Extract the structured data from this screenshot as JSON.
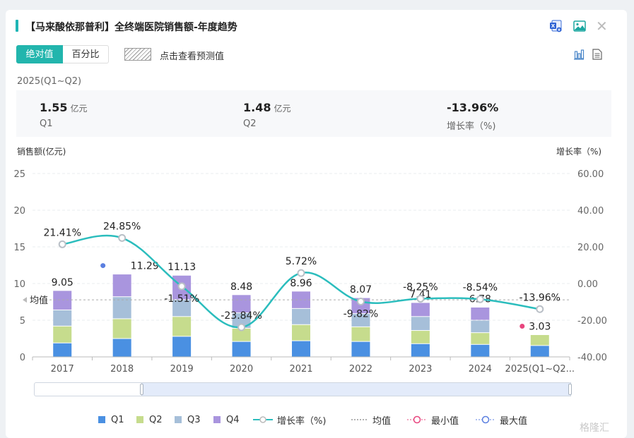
{
  "header": {
    "title": "【马来酸依那普利】全终端医院销售额-年度趋势",
    "excel_icon": "excel-export-icon",
    "image_icon": "image-export-icon",
    "close_icon": "close-icon"
  },
  "toggle": {
    "abs_label": "绝对值",
    "pct_label": "百分比"
  },
  "forecast": {
    "label": "点击查看预测值"
  },
  "view_icons": {
    "bar": "bar-chart-icon",
    "table": "document-icon"
  },
  "period": "2025(Q1~Q2)",
  "kpis": [
    {
      "value": "1.55",
      "unit": "亿元",
      "label": "Q1"
    },
    {
      "value": "1.48",
      "unit": "亿元",
      "label": "Q2"
    },
    {
      "value": "-13.96%",
      "unit": "",
      "label": "增长率（%)"
    }
  ],
  "avg_label": "均值",
  "chart_data": {
    "type": "bar",
    "stacked": true,
    "categories": [
      "2017",
      "2018",
      "2019",
      "2020",
      "2021",
      "2022",
      "2023",
      "2024",
      "2025(Q1~Q2..."
    ],
    "series": [
      {
        "name": "Q1",
        "color": "#4a90e2",
        "values": [
          1.9,
          2.5,
          2.8,
          2.1,
          2.2,
          2.1,
          1.8,
          1.7,
          1.55
        ]
      },
      {
        "name": "Q2",
        "color": "#c6dc8d",
        "values": [
          2.3,
          2.7,
          2.7,
          1.8,
          2.2,
          2.0,
          1.8,
          1.6,
          1.48
        ]
      },
      {
        "name": "Q3",
        "color": "#a6bfd9",
        "values": [
          2.2,
          3.0,
          2.3,
          2.1,
          2.2,
          1.8,
          1.9,
          1.7,
          0
        ]
      },
      {
        "name": "Q4",
        "color": "#a995de",
        "values": [
          2.65,
          3.09,
          3.33,
          2.48,
          2.36,
          2.17,
          1.91,
          1.78,
          0
        ]
      }
    ],
    "totals": [
      "9.05",
      "11.29",
      "11.13",
      "8.48",
      "8.96",
      "8.07",
      "7.41",
      "6.78",
      "3.03"
    ],
    "growth": {
      "name": "增长率（%)",
      "color": "#2bbdbd",
      "values": [
        21.41,
        24.85,
        -1.51,
        -23.84,
        5.72,
        -9.82,
        -8.25,
        -8.54,
        -13.96
      ],
      "labels": [
        "21.41%",
        "24.85%",
        "-1.51%",
        "-23.84%",
        "5.72%",
        "-9.82%",
        "-8.25%",
        "-8.54%",
        "-13.96%"
      ]
    },
    "average_growth": -8.9,
    "max_index": 1,
    "min_index": 8,
    "max_color": "#5b7fe0",
    "min_color": "#e8457e",
    "ylabel": "销售额(亿元)",
    "y2label": "增长率（%)",
    "ylim": [
      0,
      25
    ],
    "y2lim": [
      -40,
      60
    ],
    "yticks": [
      "0",
      "5",
      "10",
      "15",
      "20",
      "25"
    ],
    "y2ticks": [
      "-40.00",
      "-20.00",
      "0.00",
      "20.00",
      "40.00",
      "60.00"
    ],
    "grid": true,
    "legend_position": "bottom"
  },
  "legend": {
    "q1": "Q1",
    "q2": "Q2",
    "q3": "Q3",
    "q4": "Q4",
    "growth": "增长率（%)",
    "avg": "均值",
    "min": "最小值",
    "max": "最大值"
  },
  "watermark": "格隆汇"
}
